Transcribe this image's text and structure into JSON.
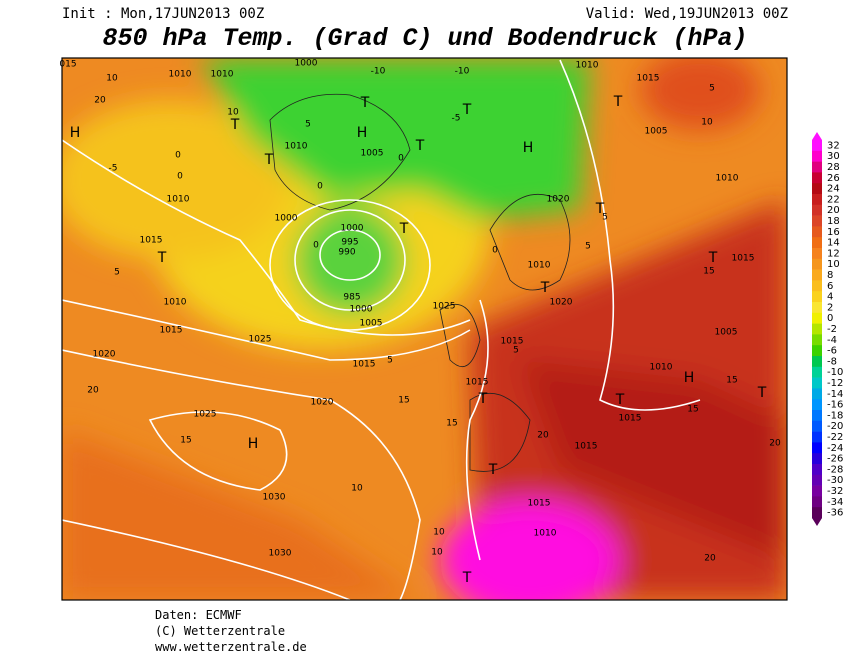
{
  "header": {
    "init": "Init : Mon,17JUN2013 00Z",
    "valid": "Valid: Wed,19JUN2013 00Z",
    "title": "850 hPa Temp. (Grad C) und Bodendruck (hPa)"
  },
  "map": {
    "labels": [
      "015",
      "1010",
      "1010",
      "1000",
      "-10",
      "-10",
      "1010",
      "1015",
      "10",
      "10",
      "5",
      "H",
      "H",
      "T",
      "T",
      "T",
      "T",
      "T",
      "T",
      "T",
      "T",
      "T",
      "T",
      "T",
      "T",
      "T",
      "T",
      "T",
      "T",
      "H",
      "H",
      "H",
      "1005",
      "1010",
      "1000",
      "1000",
      "995",
      "990",
      "985",
      "1000",
      "1005",
      "1010",
      "1015",
      "1010",
      "1015",
      "1020",
      "1025",
      "1015",
      "1020",
      "1025",
      "1030",
      "1030",
      "1025",
      "1015",
      "1015",
      "1010",
      "1020",
      "1020",
      "1015",
      "1005",
      "1010",
      "1010",
      "1015",
      "1015",
      "1015",
      "1010",
      "1005",
      "15",
      "15",
      "15",
      "20",
      "20",
      "20",
      "20",
      "15",
      "15",
      "10",
      "10",
      "10",
      "15",
      "5",
      "5",
      "-5",
      "-5",
      "0",
      "0",
      "0",
      "0",
      "0",
      "0",
      "5",
      "5",
      "5",
      "10",
      "5",
      "20"
    ]
  },
  "colorbar": {
    "levels": [
      32,
      30,
      28,
      26,
      24,
      22,
      20,
      18,
      16,
      14,
      12,
      10,
      8,
      6,
      4,
      2,
      0,
      -2,
      -4,
      -6,
      -8,
      -10,
      -12,
      -14,
      -16,
      -18,
      -20,
      -22,
      -24,
      -26,
      -28,
      -30,
      -32,
      -34,
      -36
    ],
    "colors": [
      "#ff10ff",
      "#ff00cc",
      "#e0007f",
      "#c80032",
      "#b40a14",
      "#c81e1e",
      "#d23228",
      "#dc4628",
      "#e65a1e",
      "#f06e14",
      "#f5821e",
      "#f5961e",
      "#faaa1e",
      "#fabe1e",
      "#fad21e",
      "#fae632",
      "#f0f000",
      "#b4e600",
      "#78dc00",
      "#3cd200",
      "#00c850",
      "#00d296",
      "#00c8c8",
      "#00aae6",
      "#0096ff",
      "#0078ff",
      "#005aff",
      "#0032ff",
      "#0000ff",
      "#2800dc",
      "#5000c8",
      "#6400b4",
      "#7800a0",
      "#6e0082",
      "#5a005a"
    ]
  },
  "footer": {
    "source": "Daten: ECMWF",
    "copyright": "(C) Wetterzentrale",
    "url": "www.wetterzentrale.de"
  }
}
